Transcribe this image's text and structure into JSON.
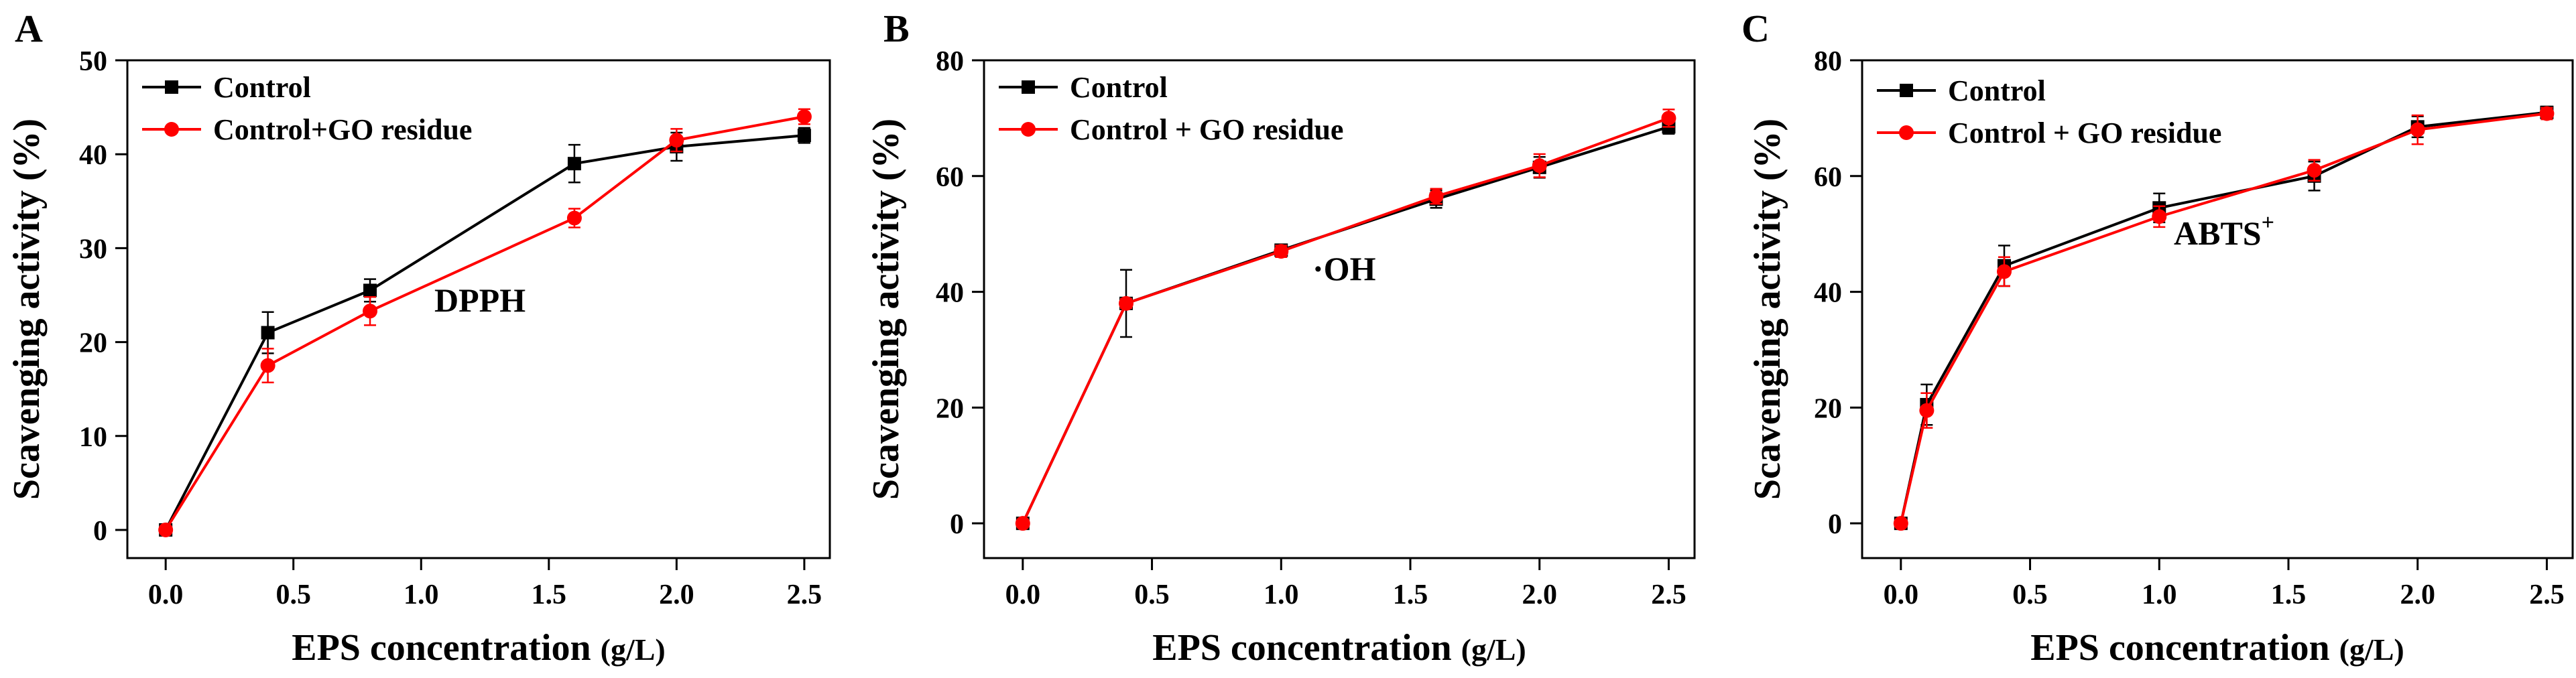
{
  "colors": {
    "control": "#000000",
    "go_residue": "#ff0000",
    "axis": "#000000"
  },
  "chart_data": [
    {
      "type": "line",
      "panel_label": "A",
      "annotation": "DPPH",
      "xlabel_main": "EPS concentration ",
      "xlabel_unit": "(g/L)",
      "ylabel": "Scavenging activity (%)",
      "xlim": [
        -0.15,
        2.6
      ],
      "ylim": [
        -3,
        50
      ],
      "xticks": [
        0.0,
        0.5,
        1.0,
        1.5,
        2.0,
        2.5
      ],
      "xtick_labels": [
        "0.0",
        "0.5",
        "1.0",
        "1.5",
        "2.0",
        "2.5"
      ],
      "yticks": [
        0,
        10,
        20,
        30,
        40,
        50
      ],
      "ytick_labels": [
        "0",
        "10",
        "20",
        "30",
        "40",
        "50"
      ],
      "legend_position": "top-left",
      "series": [
        {
          "name": "Control",
          "color": "#000000",
          "marker": "square",
          "x": [
            0.0,
            0.4,
            0.8,
            1.6,
            2.0,
            2.5
          ],
          "y": [
            0.0,
            21.0,
            25.5,
            39.0,
            40.8,
            42.0
          ],
          "err": [
            0.3,
            2.2,
            1.2,
            2.0,
            1.5,
            0.8
          ]
        },
        {
          "name": "Control+GO residue",
          "color": "#ff0000",
          "marker": "circle",
          "x": [
            0.0,
            0.4,
            0.8,
            1.6,
            2.0,
            2.5
          ],
          "y": [
            0.0,
            17.5,
            23.3,
            33.2,
            41.5,
            44.0
          ],
          "err": [
            0.3,
            1.8,
            1.5,
            1.0,
            1.2,
            0.8
          ]
        }
      ]
    },
    {
      "type": "line",
      "panel_label": "B",
      "annotation": "·OH",
      "xlabel_main": "EPS concentration ",
      "xlabel_unit": "(g/L)",
      "ylabel": "Scavenging activity (%)",
      "xlim": [
        -0.15,
        2.6
      ],
      "ylim": [
        -6,
        80
      ],
      "xticks": [
        0.0,
        0.5,
        1.0,
        1.5,
        2.0,
        2.5
      ],
      "xtick_labels": [
        "0.0",
        "0.5",
        "1.0",
        "1.5",
        "2.0",
        "2.5"
      ],
      "yticks": [
        0,
        20,
        40,
        60,
        80
      ],
      "ytick_labels": [
        "0",
        "20",
        "40",
        "60",
        "80"
      ],
      "legend_position": "top-left",
      "series": [
        {
          "name": "Control",
          "color": "#000000",
          "marker": "square",
          "x": [
            0.0,
            0.4,
            1.0,
            1.6,
            2.0,
            2.5
          ],
          "y": [
            0.0,
            38.0,
            47.2,
            56.0,
            61.5,
            68.5
          ],
          "err": [
            0.4,
            5.8,
            1.0,
            1.5,
            1.8,
            1.2
          ]
        },
        {
          "name": "Control + GO residue",
          "color": "#ff0000",
          "marker": "circle",
          "x": [
            0.0,
            0.4,
            1.0,
            1.6,
            2.0,
            2.5
          ],
          "y": [
            0.0,
            38.0,
            47.0,
            56.5,
            61.8,
            70.0
          ],
          "err": [
            0.4,
            0.8,
            1.0,
            1.3,
            2.0,
            1.5
          ]
        }
      ]
    },
    {
      "type": "line",
      "panel_label": "C",
      "annotation": "ABTS",
      "annotation_sup": "+",
      "xlabel_main": "EPS concentration ",
      "xlabel_unit": "(g/L)",
      "ylabel": "Scavenging activity (%)",
      "xlim": [
        -0.15,
        2.6
      ],
      "ylim": [
        -6,
        80
      ],
      "xticks": [
        0.0,
        0.5,
        1.0,
        1.5,
        2.0,
        2.5
      ],
      "xtick_labels": [
        "0.0",
        "0.5",
        "1.0",
        "1.5",
        "2.0",
        "2.5"
      ],
      "yticks": [
        0,
        20,
        40,
        60,
        80
      ],
      "ytick_labels": [
        "0",
        "20",
        "40",
        "60",
        "80"
      ],
      "legend_position": "top-left",
      "series": [
        {
          "name": "Control",
          "color": "#000000",
          "marker": "square",
          "x": [
            0.0,
            0.1,
            0.4,
            1.0,
            1.6,
            2.0,
            2.5
          ],
          "y": [
            0.0,
            20.5,
            44.5,
            54.5,
            60.0,
            68.5,
            71.0
          ],
          "err": [
            0.4,
            3.5,
            3.5,
            2.5,
            2.5,
            1.8,
            1.0
          ]
        },
        {
          "name": "Control + GO residue",
          "color": "#ff0000",
          "marker": "circle",
          "x": [
            0.0,
            0.1,
            0.4,
            1.0,
            1.6,
            2.0,
            2.5
          ],
          "y": [
            0.0,
            19.5,
            43.5,
            53.0,
            61.0,
            68.0,
            70.8
          ],
          "err": [
            0.4,
            3.0,
            2.5,
            1.8,
            1.8,
            2.5,
            1.0
          ]
        }
      ]
    }
  ]
}
